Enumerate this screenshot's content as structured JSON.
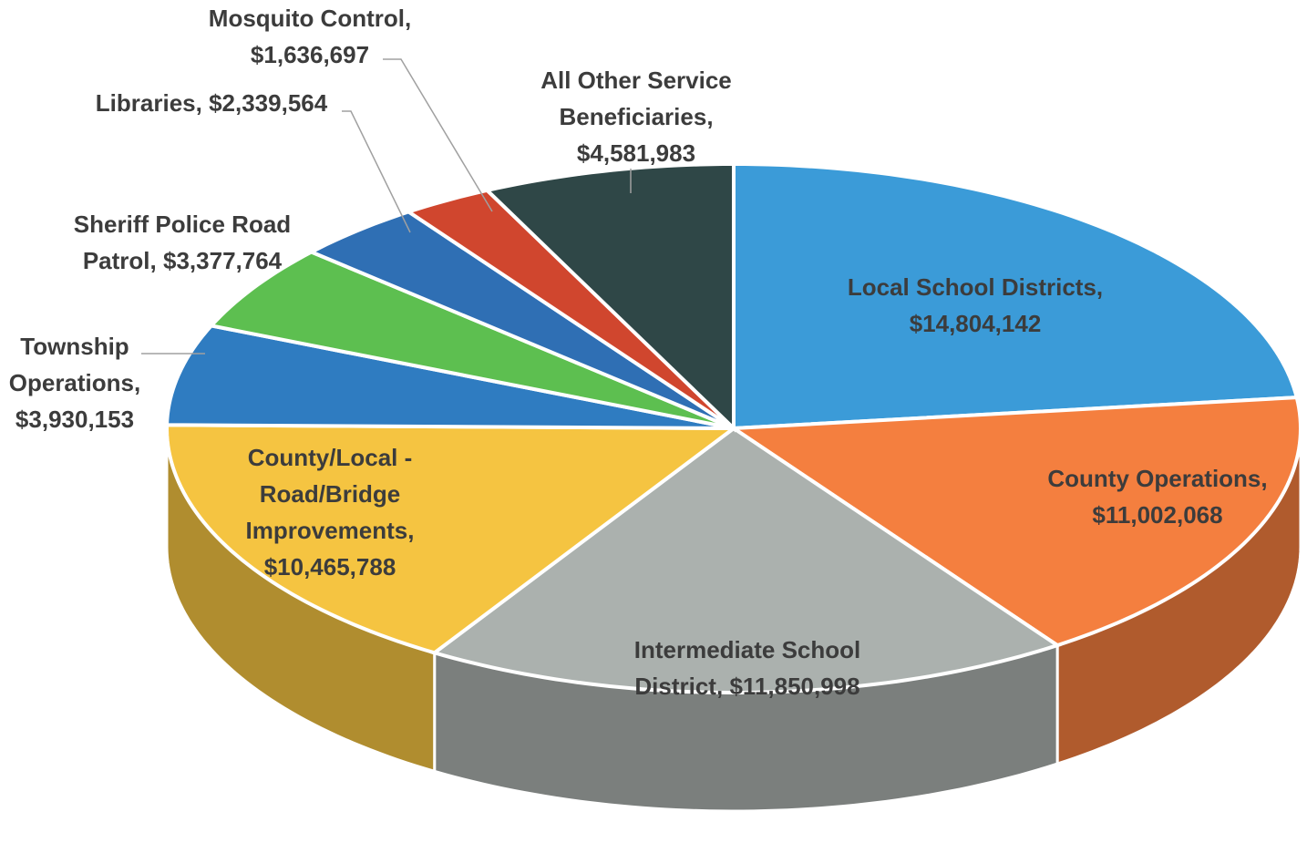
{
  "chart_data": {
    "type": "pie",
    "categories": [
      "Local School Districts,",
      "County Operations,",
      "Intermediate School District,",
      "County/Local - Road/Bridge Improvements,",
      "Township Operations,",
      "Sheriff Police Road Patrol,",
      "Libraries,",
      "Mosquito Control,",
      "All Other Service Beneficiaries,"
    ],
    "values": [
      14804142,
      11002068,
      11850998,
      10465788,
      3930153,
      3377764,
      2339564,
      1636697,
      4581983
    ],
    "value_labels": [
      "$14,804,142",
      "$11,002,068",
      "$11,850,998",
      "$10,465,788",
      "$3,930,153",
      "$3,377,764",
      "$2,339,564",
      "$1,636,697",
      "$4,581,983"
    ],
    "colors": [
      "#3b9bd8",
      "#f47f3f",
      "#abb1ae",
      "#f5c441",
      "#2f7cc1",
      "#5dbf50",
      "#2f6fb4",
      "#d0462e",
      "#2f4747"
    ]
  }
}
